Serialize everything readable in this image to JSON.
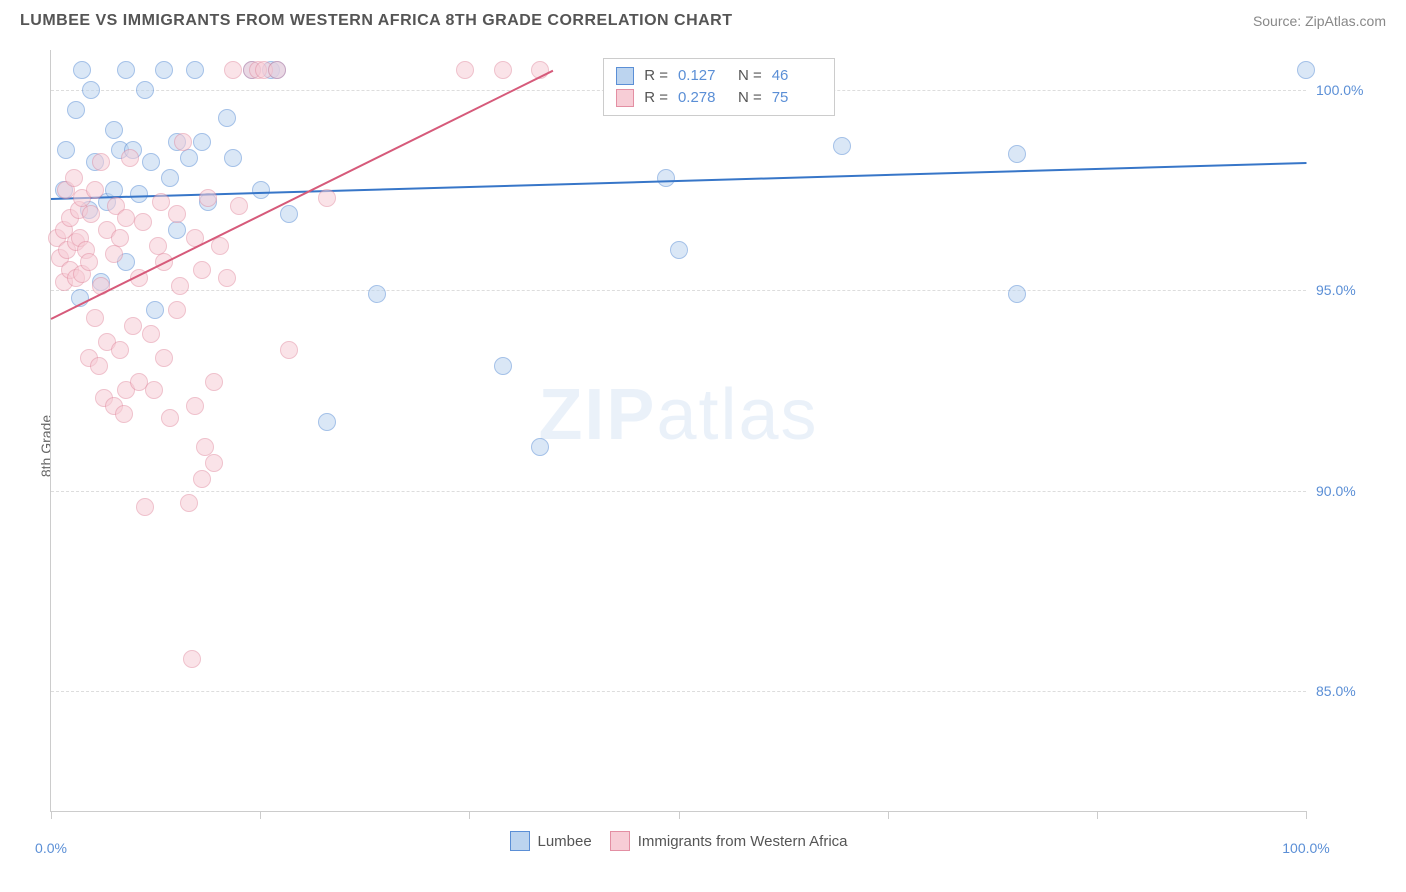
{
  "header": {
    "title": "LUMBEE VS IMMIGRANTS FROM WESTERN AFRICA 8TH GRADE CORRELATION CHART",
    "source": "Source: ZipAtlas.com"
  },
  "chart": {
    "type": "scatter",
    "ylabel": "8th Grade",
    "background_color": "#ffffff",
    "grid_color": "#dddddd",
    "axis_color": "#cccccc",
    "xlim": [
      0,
      100
    ],
    "ylim": [
      82,
      101
    ],
    "yticks": [
      {
        "v": 85,
        "label": "85.0%"
      },
      {
        "v": 90,
        "label": "90.0%"
      },
      {
        "v": 95,
        "label": "95.0%"
      },
      {
        "v": 100,
        "label": "100.0%"
      }
    ],
    "xticks_minor": [
      0,
      16.67,
      33.33,
      50,
      66.67,
      83.33,
      100
    ],
    "xtick_labels": [
      {
        "v": 0,
        "label": "0.0%"
      },
      {
        "v": 100,
        "label": "100.0%"
      }
    ],
    "marker_radius": 9,
    "marker_opacity": 0.55,
    "series": [
      {
        "name": "Lumbee",
        "color_fill": "#bcd4ef",
        "color_stroke": "#5b8fd6",
        "trend": {
          "x1": 0,
          "y1": 97.3,
          "x2": 100,
          "y2": 98.2,
          "color": "#3776c8",
          "width": 2
        },
        "stats": {
          "R": "0.127",
          "N": "46"
        },
        "points": [
          [
            1,
            97.5
          ],
          [
            1.2,
            98.5
          ],
          [
            2,
            99.5
          ],
          [
            2.3,
            94.8
          ],
          [
            2.5,
            100.5
          ],
          [
            3,
            97
          ],
          [
            3.2,
            100
          ],
          [
            3.5,
            98.2
          ],
          [
            4,
            95.2
          ],
          [
            4.5,
            97.2
          ],
          [
            5,
            99
          ],
          [
            5,
            97.5
          ],
          [
            5.5,
            98.5
          ],
          [
            6,
            95.7
          ],
          [
            6,
            100.5
          ],
          [
            6.5,
            98.5
          ],
          [
            7,
            97.4
          ],
          [
            7.5,
            100
          ],
          [
            8,
            98.2
          ],
          [
            8.3,
            94.5
          ],
          [
            9,
            100.5
          ],
          [
            9.5,
            97.8
          ],
          [
            10,
            98.7
          ],
          [
            10,
            96.5
          ],
          [
            11,
            98.3
          ],
          [
            11.5,
            100.5
          ],
          [
            12,
            98.7
          ],
          [
            12.5,
            97.2
          ],
          [
            14,
            99.3
          ],
          [
            14.5,
            98.3
          ],
          [
            16,
            100.5
          ],
          [
            16.7,
            97.5
          ],
          [
            17.5,
            100.5
          ],
          [
            18,
            100.5
          ],
          [
            19,
            96.9
          ],
          [
            22,
            91.7
          ],
          [
            26,
            94.9
          ],
          [
            36,
            93.1
          ],
          [
            39,
            91.1
          ],
          [
            49,
            97.8
          ],
          [
            50,
            96
          ],
          [
            60,
            100.5
          ],
          [
            63,
            98.6
          ],
          [
            77,
            98.4
          ],
          [
            77,
            94.9
          ],
          [
            100,
            100.5
          ]
        ]
      },
      {
        "name": "Immigrants from Western Africa",
        "color_fill": "#f7cdd6",
        "color_stroke": "#e38fa3",
        "trend": {
          "x1": 0,
          "y1": 94.3,
          "x2": 40,
          "y2": 100.5,
          "color": "#d65a7a",
          "width": 2
        },
        "stats": {
          "R": "0.278",
          "N": "75"
        },
        "points": [
          [
            0.5,
            96.3
          ],
          [
            0.7,
            95.8
          ],
          [
            1,
            95.2
          ],
          [
            1,
            96.5
          ],
          [
            1.2,
            97.5
          ],
          [
            1.3,
            96
          ],
          [
            1.5,
            95.5
          ],
          [
            1.5,
            96.8
          ],
          [
            1.8,
            97.8
          ],
          [
            2,
            96.2
          ],
          [
            2,
            95.3
          ],
          [
            2.2,
            97
          ],
          [
            2.3,
            96.3
          ],
          [
            2.5,
            95.4
          ],
          [
            2.5,
            97.3
          ],
          [
            2.8,
            96
          ],
          [
            3,
            95.7
          ],
          [
            3,
            93.3
          ],
          [
            3.2,
            96.9
          ],
          [
            3.5,
            94.3
          ],
          [
            3.5,
            97.5
          ],
          [
            3.8,
            93.1
          ],
          [
            4,
            95.1
          ],
          [
            4,
            98.2
          ],
          [
            4.2,
            92.3
          ],
          [
            4.5,
            96.5
          ],
          [
            4.5,
            93.7
          ],
          [
            5,
            92.1
          ],
          [
            5,
            95.9
          ],
          [
            5.2,
            97.1
          ],
          [
            5.5,
            93.5
          ],
          [
            5.5,
            96.3
          ],
          [
            5.8,
            91.9
          ],
          [
            6,
            92.5
          ],
          [
            6,
            96.8
          ],
          [
            6.3,
            98.3
          ],
          [
            6.5,
            94.1
          ],
          [
            7,
            95.3
          ],
          [
            7,
            92.7
          ],
          [
            7.3,
            96.7
          ],
          [
            7.5,
            89.6
          ],
          [
            8,
            93.9
          ],
          [
            8.2,
            92.5
          ],
          [
            8.5,
            96.1
          ],
          [
            8.8,
            97.2
          ],
          [
            9,
            95.7
          ],
          [
            9,
            93.3
          ],
          [
            9.5,
            91.8
          ],
          [
            10,
            94.5
          ],
          [
            10,
            96.9
          ],
          [
            10.3,
            95.1
          ],
          [
            10.5,
            98.7
          ],
          [
            11,
            89.7
          ],
          [
            11.2,
            85.8
          ],
          [
            11.5,
            92.1
          ],
          [
            11.5,
            96.3
          ],
          [
            12,
            95.5
          ],
          [
            12,
            90.3
          ],
          [
            12.3,
            91.1
          ],
          [
            12.5,
            97.3
          ],
          [
            13,
            92.7
          ],
          [
            13,
            90.7
          ],
          [
            13.5,
            96.1
          ],
          [
            14,
            95.3
          ],
          [
            14.5,
            100.5
          ],
          [
            15,
            97.1
          ],
          [
            16,
            100.5
          ],
          [
            16.5,
            100.5
          ],
          [
            17,
            100.5
          ],
          [
            18,
            100.5
          ],
          [
            19,
            93.5
          ],
          [
            22,
            97.3
          ],
          [
            33,
            100.5
          ],
          [
            36,
            100.5
          ],
          [
            39,
            100.5
          ]
        ]
      }
    ],
    "stats_box": {
      "left_pct": 44,
      "top_pct": 1
    },
    "watermark": {
      "bold": "ZIP",
      "light": "atlas"
    },
    "legend": [
      {
        "label": "Lumbee",
        "fill": "#bcd4ef",
        "stroke": "#5b8fd6"
      },
      {
        "label": "Immigrants from Western Africa",
        "fill": "#f7cdd6",
        "stroke": "#e38fa3"
      }
    ],
    "title_fontsize": 16,
    "label_fontsize": 14
  }
}
